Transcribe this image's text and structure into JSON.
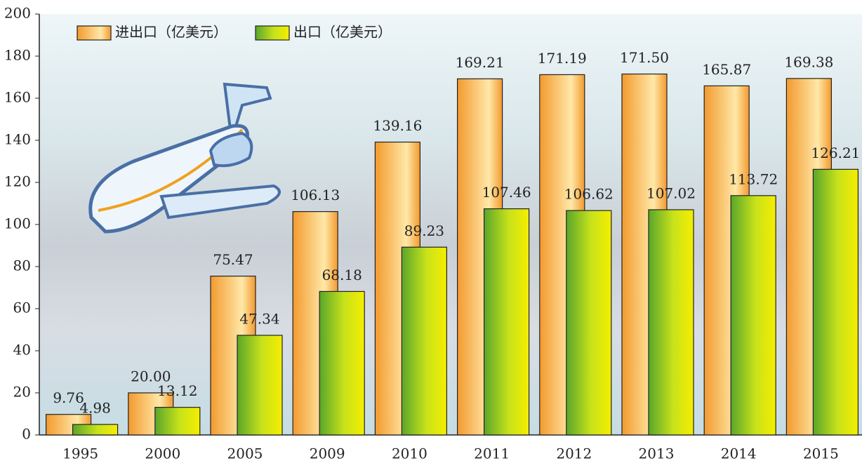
{
  "chart_data": {
    "type": "bar",
    "categories": [
      "1995",
      "2000",
      "2005",
      "2009",
      "2010",
      "2011",
      "2012",
      "2013",
      "2014",
      "2015"
    ],
    "series": [
      {
        "name": "进出口（亿美元）",
        "color": "#f39a2e",
        "values": [
          9.76,
          20.0,
          75.47,
          106.13,
          139.16,
          169.21,
          171.19,
          171.5,
          165.87,
          169.38
        ],
        "value_labels": [
          "9.76",
          "20.00",
          "75.47",
          "106.13",
          "139.16",
          "169.21",
          "171.19",
          "171.50",
          "165.87",
          "169.38"
        ]
      },
      {
        "name": "出口（亿美元）",
        "color": "#5aa62b",
        "values": [
          4.98,
          13.12,
          47.34,
          68.18,
          89.23,
          107.46,
          106.62,
          107.02,
          113.72,
          126.21
        ],
        "value_labels": [
          "4.98",
          "13.12",
          "47.34",
          "68.18",
          "89.23",
          "107.46",
          "106.62",
          "107.02",
          "113.72",
          "126.21"
        ]
      }
    ],
    "ylim": [
      0,
      200
    ],
    "yticks": [
      0,
      20,
      40,
      60,
      80,
      100,
      120,
      140,
      160,
      180,
      200
    ],
    "legend": "top-left"
  }
}
